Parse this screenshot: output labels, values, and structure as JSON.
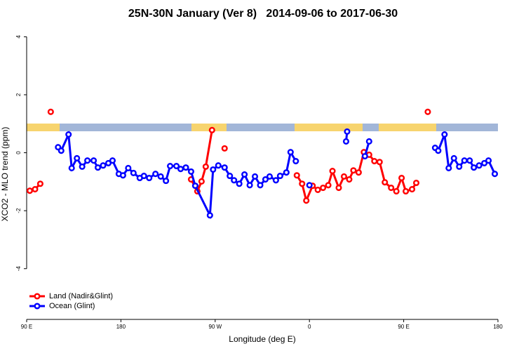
{
  "chart_data": {
    "type": "line",
    "title": "25N-30N January (Ver 8)   2014-09-06 to 2017-06-30",
    "x_label": "Longitude (deg E)",
    "y_label": "XCO2 - MLO trend (ppm)",
    "xlim": [
      90,
      540
    ],
    "xticks": [
      {
        "value": 90,
        "label": "90 E"
      },
      180,
      {
        "value": 270,
        "label": "90 W"
      },
      {
        "value": 360,
        "label": "0"
      },
      {
        "value": 450,
        "label": "90 E"
      },
      {
        "value": 540,
        "label": "180"
      }
    ],
    "ylim": [
      -5.75,
      4.3
    ],
    "yticks": [
      -4,
      -2,
      0,
      2,
      4
    ],
    "legend": "bottom-left",
    "series": [
      {
        "name": "Land (Nadir&Glint)",
        "color": "#ff0000",
        "x": [
          93,
          98,
          103,
          null,
          113,
          null,
          247,
          253,
          257,
          261,
          267,
          null,
          279,
          null,
          348,
          353,
          357,
          363,
          368,
          373,
          378,
          382,
          388,
          393,
          398,
          402,
          407,
          412,
          417,
          422,
          427,
          432,
          438,
          443,
          448,
          452,
          458,
          462,
          null,
          473
        ],
        "values": [
          -1.31,
          -1.26,
          -1.07,
          null,
          1.41,
          null,
          -0.92,
          -1.33,
          -0.99,
          -0.48,
          0.78,
          null,
          0.15,
          null,
          -0.78,
          -1.07,
          -1.65,
          -1.14,
          -1.28,
          -1.21,
          -1.12,
          -0.63,
          -1.21,
          -0.82,
          -0.92,
          -0.61,
          -0.68,
          0.02,
          -0.07,
          -0.29,
          -0.32,
          -1.02,
          -1.21,
          -1.33,
          -0.87,
          -1.33,
          -1.26,
          -1.04,
          null,
          1.41
        ]
      },
      {
        "name": "Ocean (Glint)",
        "color": "#0000ff",
        "x": [
          120,
          123,
          130,
          133,
          138,
          143,
          148,
          154,
          158,
          163,
          168,
          172,
          178,
          182,
          187,
          192,
          198,
          202,
          207,
          213,
          218,
          223,
          227,
          233,
          237,
          242,
          247,
          251,
          265,
          268,
          273,
          279,
          284,
          288,
          293,
          298,
          303,
          308,
          313,
          318,
          322,
          328,
          332,
          338,
          342,
          347,
          null,
          360,
          null,
          395,
          396,
          null,
          413,
          417,
          null,
          480,
          483,
          489,
          493,
          498,
          503,
          508,
          513,
          517,
          522,
          527,
          531,
          537
        ],
        "values": [
          0.19,
          0.07,
          0.63,
          -0.53,
          -0.19,
          -0.48,
          -0.27,
          -0.27,
          -0.51,
          -0.44,
          -0.36,
          -0.27,
          -0.73,
          -0.78,
          -0.53,
          -0.7,
          -0.87,
          -0.8,
          -0.87,
          -0.73,
          -0.82,
          -0.97,
          -0.46,
          -0.46,
          -0.56,
          -0.51,
          -0.65,
          -1.14,
          -2.16,
          -0.58,
          -0.44,
          -0.51,
          -0.8,
          -0.95,
          -1.07,
          -0.75,
          -1.12,
          -0.82,
          -1.12,
          -0.92,
          -0.82,
          -0.95,
          -0.8,
          -0.68,
          0.02,
          -0.29,
          null,
          -1.12,
          null,
          0.39,
          0.73,
          null,
          -0.12,
          0.39,
          null,
          0.17,
          0.07,
          0.63,
          -0.53,
          -0.19,
          -0.48,
          -0.27,
          -0.27,
          -0.51,
          -0.44,
          -0.36,
          -0.27,
          -0.73
        ]
      }
    ]
  }
}
